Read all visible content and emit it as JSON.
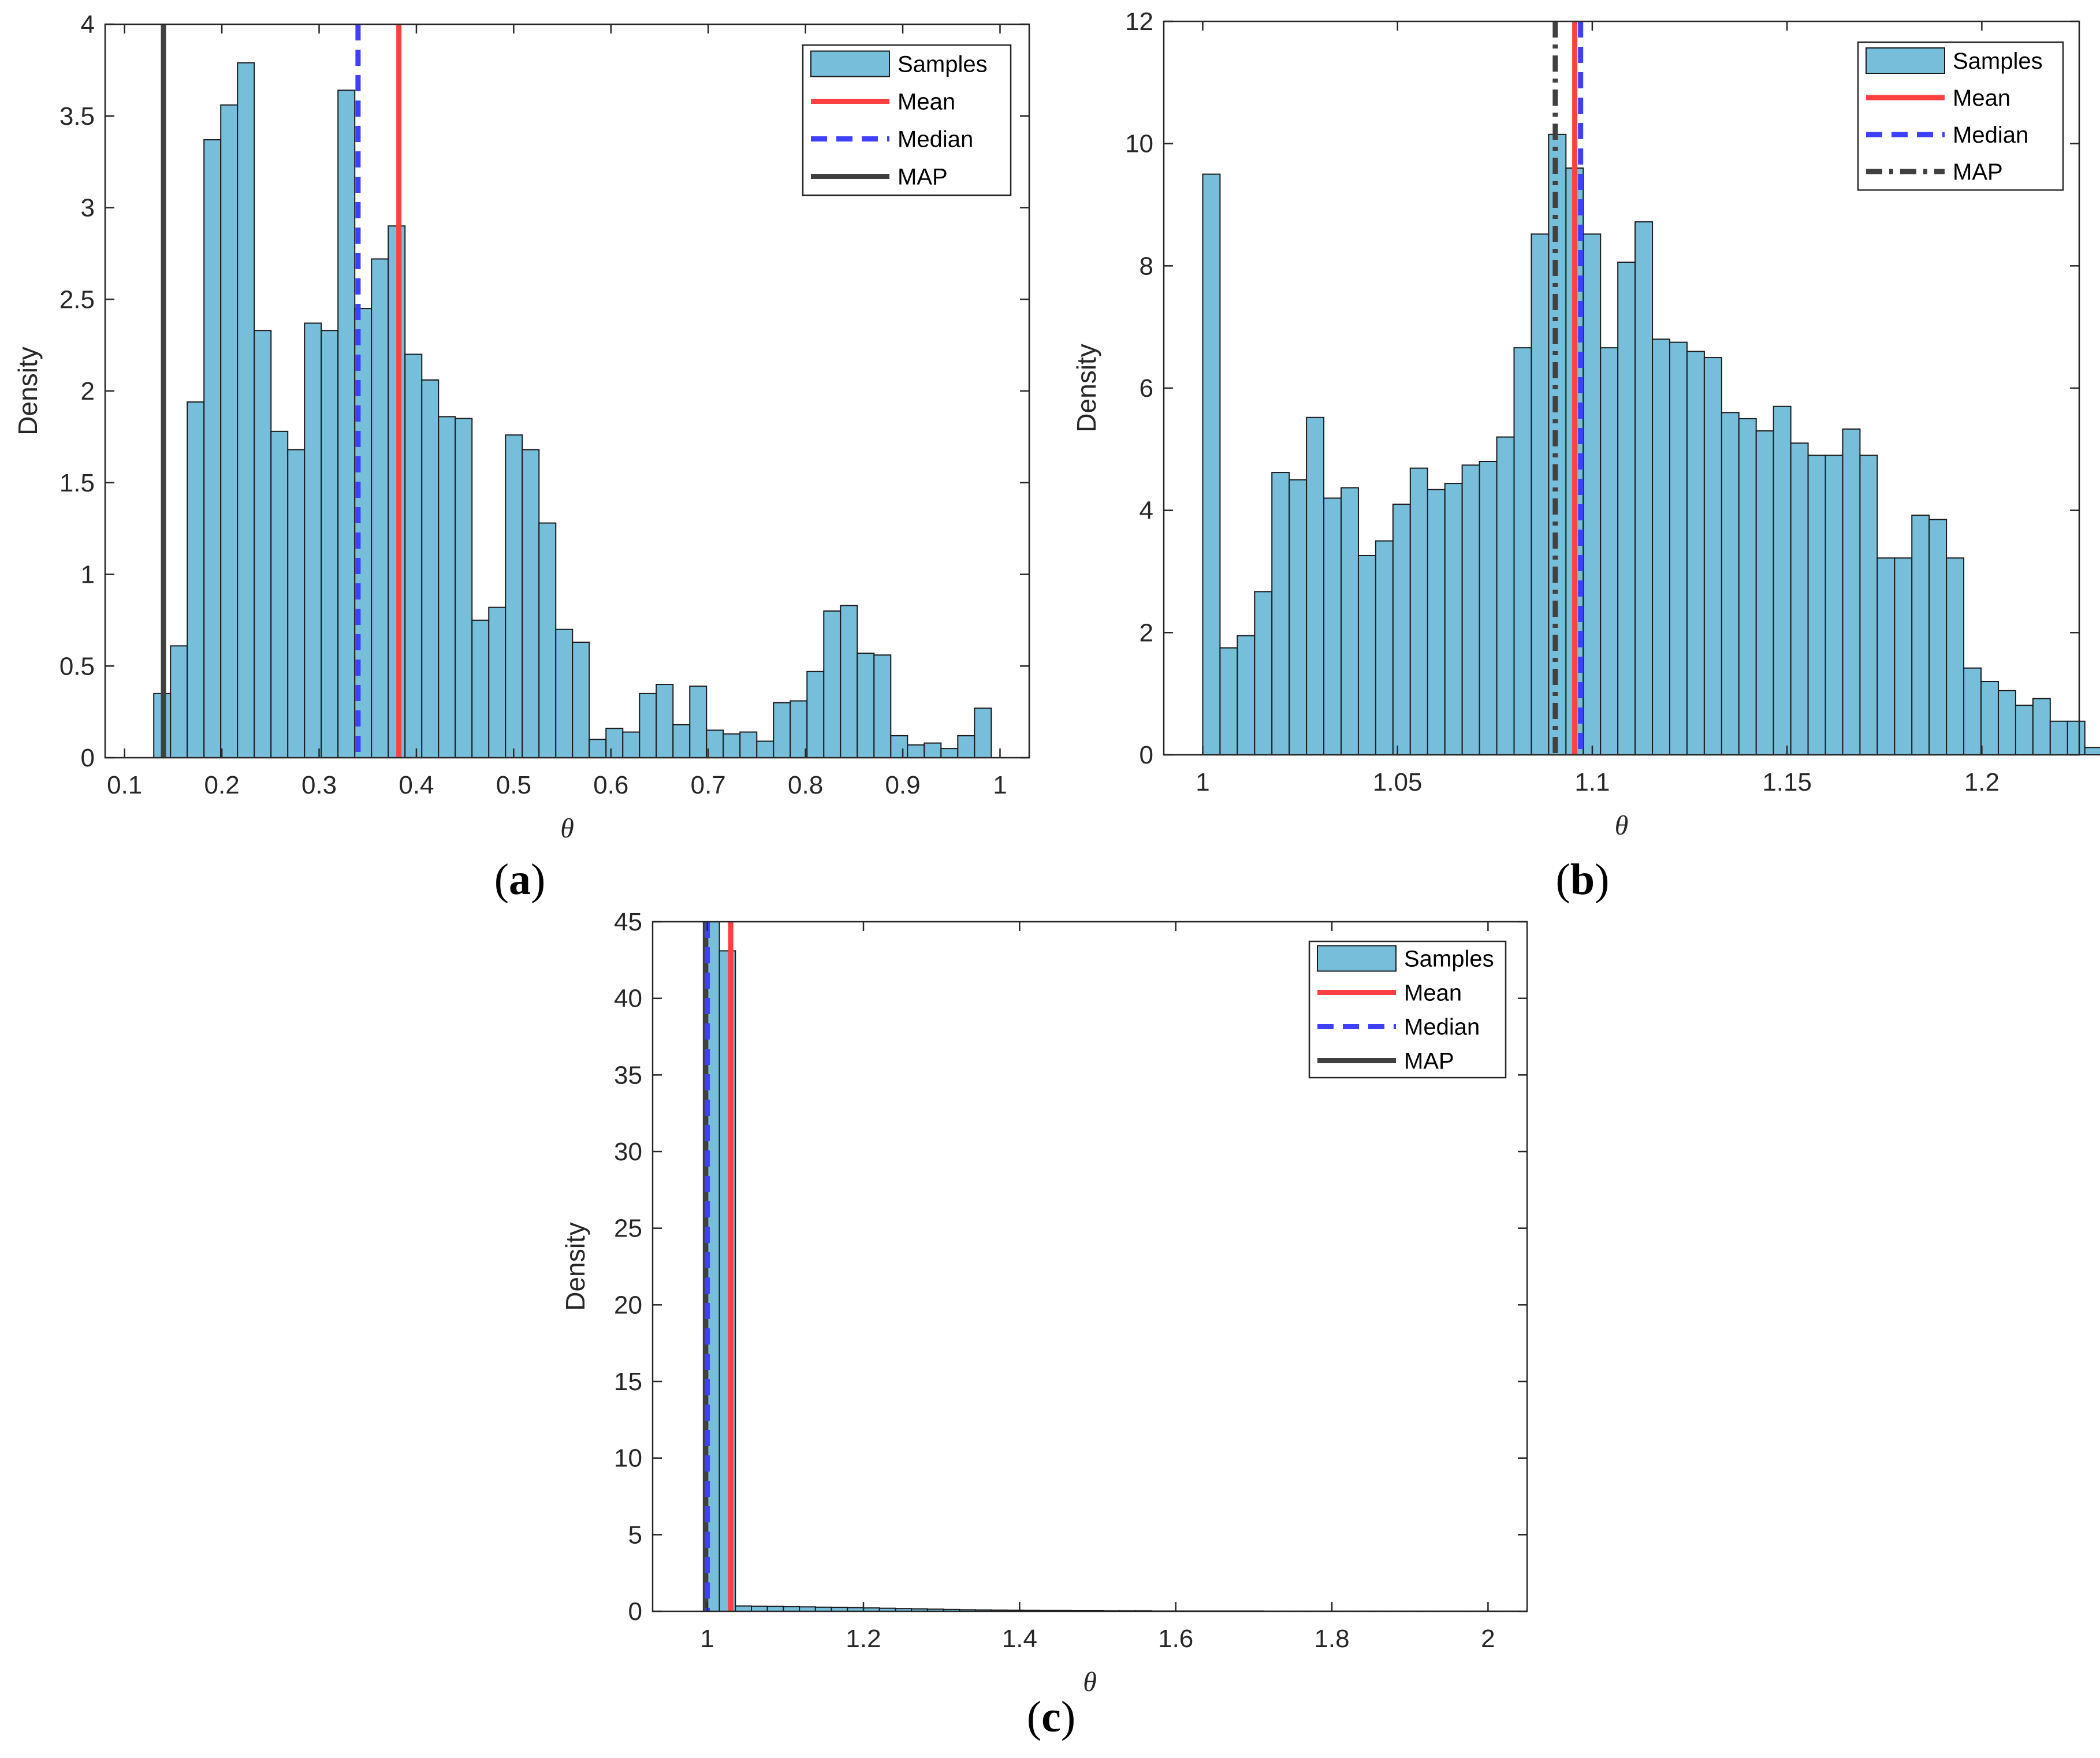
{
  "colors": {
    "bar_fill": "#77BEDB",
    "bar_edge": "#1a1a1a",
    "mean": "#FF4040",
    "median": "#3F3FFF",
    "map": "#404040",
    "axis": "#262626"
  },
  "chart_data": [
    {
      "id": "a",
      "caption": "a",
      "type": "bar",
      "xlabel": "θ",
      "ylabel": "Density",
      "xlim": [
        0.08,
        1.03
      ],
      "ylim": [
        0,
        4
      ],
      "xticks": [
        0.1,
        0.2,
        0.3,
        0.4,
        0.5,
        0.6,
        0.7,
        0.8,
        0.9,
        1
      ],
      "xtick_labels": [
        "0.1",
        "0.2",
        "0.3",
        "0.4",
        "0.5",
        "0.6",
        "0.7",
        "0.8",
        "0.9",
        "1"
      ],
      "yticks": [
        0,
        0.5,
        1,
        1.5,
        2,
        2.5,
        3,
        3.5,
        4
      ],
      "ytick_labels": [
        "0",
        "0.5",
        "1",
        "1.5",
        "2",
        "2.5",
        "3",
        "3.5",
        "4"
      ],
      "bin_start": 0.13,
      "bin_width": 0.01722,
      "values": [
        0.35,
        0.61,
        1.94,
        3.37,
        3.56,
        3.79,
        2.33,
        1.78,
        1.68,
        2.37,
        2.33,
        3.64,
        2.45,
        2.72,
        2.9,
        2.2,
        2.06,
        1.86,
        1.85,
        0.75,
        0.82,
        1.76,
        1.68,
        1.28,
        0.7,
        0.63,
        0.1,
        0.16,
        0.14,
        0.35,
        0.4,
        0.18,
        0.39,
        0.15,
        0.13,
        0.14,
        0.09,
        0.3,
        0.31,
        0.47,
        0.8,
        0.83,
        0.57,
        0.56,
        0.12,
        0.07,
        0.08,
        0.05,
        0.12,
        0.27
      ],
      "lines": [
        {
          "name": "Mean",
          "x": 0.382,
          "style": "solid"
        },
        {
          "name": "Median",
          "x": 0.34,
          "style": "dashed"
        },
        {
          "name": "MAP",
          "x": 0.14,
          "style": "solid"
        }
      ],
      "legend": [
        "Samples",
        "Mean",
        "Median",
        "MAP"
      ],
      "legend_position": "top-right"
    },
    {
      "id": "b",
      "caption": "b",
      "type": "bar",
      "xlabel": "θ",
      "ylabel": "Density",
      "xlim": [
        0.99,
        1.225
      ],
      "ylim": [
        0,
        12
      ],
      "xticks": [
        1,
        1.05,
        1.1,
        1.15,
        1.2
      ],
      "xtick_labels": [
        "1",
        "1.05",
        "1.1",
        "1.15",
        "1.2"
      ],
      "yticks": [
        0,
        2,
        4,
        6,
        8,
        10,
        12
      ],
      "ytick_labels": [
        "0",
        "2",
        "4",
        "6",
        "8",
        "10",
        "12"
      ],
      "bin_start": 1.0,
      "bin_width": 0.00444,
      "values": [
        9.5,
        1.75,
        1.95,
        2.67,
        4.62,
        4.5,
        5.52,
        4.2,
        4.37,
        3.26,
        3.5,
        4.1,
        4.69,
        4.34,
        4.44,
        4.74,
        4.8,
        5.2,
        6.66,
        8.52,
        10.15,
        9.6,
        8.52,
        6.66,
        8.06,
        8.72,
        6.8,
        6.75,
        6.6,
        6.5,
        5.6,
        5.5,
        5.3,
        5.7,
        5.1,
        4.9,
        4.9,
        5.33,
        4.9,
        3.22,
        3.22,
        3.92,
        3.85,
        3.22,
        1.42,
        1.2,
        1.05,
        0.81,
        0.92,
        0.55,
        0.55,
        0.12
      ],
      "lines": [
        {
          "name": "Mean",
          "x": 1.0955,
          "style": "solid"
        },
        {
          "name": "Median",
          "x": 1.097,
          "style": "dashed"
        },
        {
          "name": "MAP",
          "x": 1.0905,
          "style": "dashdot"
        }
      ],
      "legend": [
        "Samples",
        "Mean",
        "Median",
        "MAP"
      ],
      "legend_position": "top-right"
    },
    {
      "id": "c",
      "caption": "c",
      "type": "bar",
      "xlabel": "θ",
      "ylabel": "Density",
      "xlim": [
        0.93,
        2.05
      ],
      "ylim": [
        0,
        45
      ],
      "xticks": [
        1,
        1.2,
        1.4,
        1.6,
        1.8,
        2
      ],
      "xtick_labels": [
        "1",
        "1.2",
        "1.4",
        "1.6",
        "1.8",
        "2"
      ],
      "yticks": [
        0,
        5,
        10,
        15,
        20,
        25,
        30,
        35,
        40,
        45
      ],
      "ytick_labels": [
        "0",
        "5",
        "10",
        "15",
        "20",
        "25",
        "30",
        "35",
        "40",
        "45"
      ],
      "bin_start": 0.995,
      "bin_width": 0.0205,
      "values": [
        45,
        43.1,
        0.35,
        0.33,
        0.32,
        0.3,
        0.29,
        0.27,
        0.26,
        0.24,
        0.22,
        0.2,
        0.18,
        0.16,
        0.14,
        0.12,
        0.1,
        0.09,
        0.08,
        0.07,
        0.06,
        0.05,
        0.05,
        0.04,
        0.04,
        0.03,
        0.03,
        0.03,
        0.02,
        0.02,
        0.02,
        0.02,
        0.02,
        0.02,
        0.02,
        0.01,
        0.01,
        0.01,
        0.01,
        0.01,
        0.01,
        0.01,
        0.01,
        0.01,
        0.01,
        0.01,
        0.01,
        0.01,
        0.01,
        0.01,
        0.01
      ],
      "lines": [
        {
          "name": "Mean",
          "x": 1.03,
          "style": "solid"
        },
        {
          "name": "Median",
          "x": 1.0,
          "style": "dashed"
        },
        {
          "name": "MAP",
          "x": 0.998,
          "style": "solid"
        }
      ],
      "legend": [
        "Samples",
        "Mean",
        "Median",
        "MAP"
      ],
      "legend_position": "top-right"
    }
  ]
}
